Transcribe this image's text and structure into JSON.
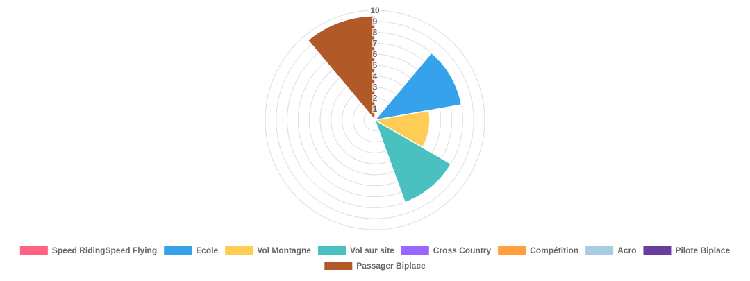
{
  "chart_data": {
    "type": "polarArea",
    "title": "",
    "categories": [
      "Speed RidingSpeed Flying",
      "Ecole",
      "Vol Montagne",
      "Vol sur site",
      "Cross Country",
      "Compétition",
      "Acro",
      "Pilote Biplace",
      "Passager Biplace"
    ],
    "values": [
      0,
      8,
      5,
      8,
      0,
      0,
      0,
      0,
      9.5
    ],
    "colors": [
      "#ff6384",
      "#36a2eb",
      "#ffcd56",
      "#4bc0c0",
      "#9966ff",
      "#ff9f40",
      "#a8cce0",
      "#6a3d9a",
      "#b15928"
    ],
    "r_ticks": [
      "1",
      "2",
      "3",
      "4",
      "5",
      "6",
      "7",
      "8",
      "9",
      "10"
    ],
    "r_range": [
      0,
      10
    ],
    "grid": true,
    "legend_position": "bottom"
  }
}
